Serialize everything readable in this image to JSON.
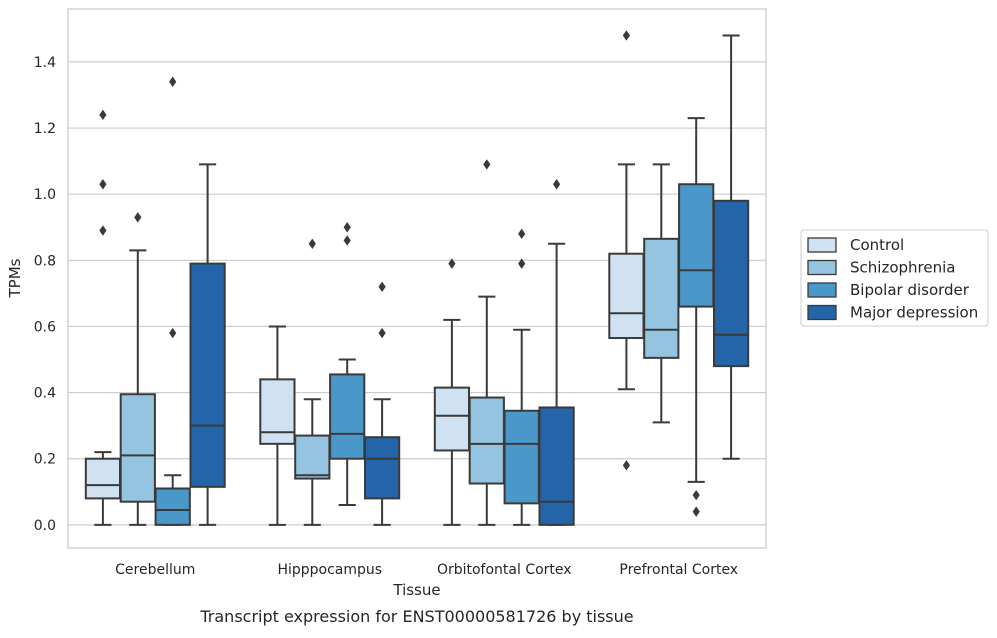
{
  "caption": "Transcript expression for ENST00000581726 by tissue",
  "chart_data": {
    "type": "boxplot",
    "xlabel": "Tissue",
    "ylabel": "TPMs",
    "ylim": [
      -0.07,
      1.56
    ],
    "yticks": [
      0.0,
      0.2,
      0.4,
      0.6,
      0.8,
      1.0,
      1.2,
      1.4
    ],
    "ytick_labels": [
      "0.0",
      "0.2",
      "0.4",
      "0.6",
      "0.8",
      "1.0",
      "1.2",
      "1.4"
    ],
    "grid": "horizontal",
    "legend_position": "right",
    "categories": [
      "Cerebellum",
      "Hipppocampus",
      "Orbitofontal Cortex",
      "Prefrontal Cortex"
    ],
    "series": [
      {
        "name": "Control",
        "color": "#d0e1f2",
        "boxes": [
          {
            "whislo": 0.0,
            "q1": 0.08,
            "med": 0.12,
            "q3": 0.2,
            "whishi": 0.22,
            "fliers": [
              0.89,
              1.03,
              1.24
            ]
          },
          {
            "whislo": 0.0,
            "q1": 0.245,
            "med": 0.28,
            "q3": 0.44,
            "whishi": 0.6,
            "fliers": []
          },
          {
            "whislo": 0.0,
            "q1": 0.225,
            "med": 0.33,
            "q3": 0.415,
            "whishi": 0.62,
            "fliers": [
              0.79
            ]
          },
          {
            "whislo": 0.41,
            "q1": 0.565,
            "med": 0.64,
            "q3": 0.82,
            "whishi": 1.09,
            "fliers": [
              0.18,
              1.48
            ]
          }
        ]
      },
      {
        "name": "Schizophrenia",
        "color": "#94c4df",
        "boxes": [
          {
            "whislo": 0.0,
            "q1": 0.07,
            "med": 0.21,
            "q3": 0.395,
            "whishi": 0.83,
            "fliers": [
              0.93
            ]
          },
          {
            "whislo": 0.0,
            "q1": 0.14,
            "med": 0.15,
            "q3": 0.27,
            "whishi": 0.38,
            "fliers": [
              0.85
            ]
          },
          {
            "whislo": 0.0,
            "q1": 0.125,
            "med": 0.245,
            "q3": 0.385,
            "whishi": 0.69,
            "fliers": [
              1.09
            ]
          },
          {
            "whislo": 0.31,
            "q1": 0.505,
            "med": 0.59,
            "q3": 0.865,
            "whishi": 1.09,
            "fliers": []
          }
        ]
      },
      {
        "name": "Bipolar disorder",
        "color": "#4a98c9",
        "boxes": [
          {
            "whislo": 0.0,
            "q1": 0.0,
            "med": 0.045,
            "q3": 0.11,
            "whishi": 0.15,
            "fliers": [
              0.58,
              1.34
            ]
          },
          {
            "whislo": 0.06,
            "q1": 0.2,
            "med": 0.275,
            "q3": 0.455,
            "whishi": 0.5,
            "fliers": [
              0.86,
              0.9
            ]
          },
          {
            "whislo": 0.0,
            "q1": 0.065,
            "med": 0.245,
            "q3": 0.345,
            "whishi": 0.59,
            "fliers": [
              0.79,
              0.88
            ]
          },
          {
            "whislo": 0.13,
            "q1": 0.66,
            "med": 0.77,
            "q3": 1.03,
            "whishi": 1.23,
            "fliers": [
              0.04,
              0.09
            ]
          }
        ]
      },
      {
        "name": "Major depression",
        "color": "#2464a8",
        "boxes": [
          {
            "whislo": 0.0,
            "q1": 0.115,
            "med": 0.3,
            "q3": 0.79,
            "whishi": 1.09,
            "fliers": []
          },
          {
            "whislo": 0.0,
            "q1": 0.08,
            "med": 0.2,
            "q3": 0.265,
            "whishi": 0.38,
            "fliers": [
              0.58,
              0.72
            ]
          },
          {
            "whislo": 0.0,
            "q1": 0.0,
            "med": 0.07,
            "q3": 0.355,
            "whishi": 0.85,
            "fliers": [
              1.03
            ]
          },
          {
            "whislo": 0.2,
            "q1": 0.48,
            "med": 0.575,
            "q3": 0.98,
            "whishi": 1.48,
            "fliers": []
          }
        ]
      }
    ]
  }
}
